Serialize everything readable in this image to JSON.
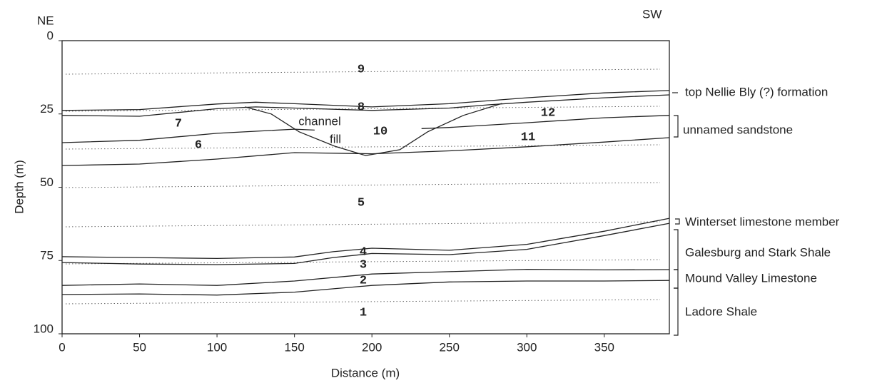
{
  "chart_data": {
    "type": "line",
    "corner_left": "NE",
    "corner_right": "SW",
    "xlabel": "Distance (m)",
    "ylabel": "Depth (m)",
    "xlim": [
      0,
      392
    ],
    "ylim": [
      0,
      100
    ],
    "xticks": [
      0,
      50,
      100,
      150,
      200,
      250,
      300,
      350
    ],
    "yticks": [
      0,
      25,
      50,
      75,
      100
    ],
    "y_inverted": true,
    "series": [
      {
        "color": "#222",
        "x": [
          0,
          50,
          100,
          125,
          150,
          200,
          250,
          300,
          350,
          392
        ],
        "values": [
          23.8,
          23.5,
          21.6,
          21.0,
          21.5,
          22.6,
          21.5,
          19.5,
          17.8,
          17.0
        ]
      },
      {
        "color": "#222",
        "x": [
          0,
          50,
          100,
          125,
          150,
          200,
          250,
          275,
          300,
          350,
          392
        ],
        "values": [
          25.5,
          25.8,
          23.2,
          22.6,
          23.0,
          23.8,
          23.0,
          21.9,
          21.0,
          19.5,
          18.5
        ]
      },
      {
        "color": "#222",
        "x": [
          0,
          50,
          100,
          150,
          163,
          200,
          232,
          250,
          300,
          350,
          392
        ],
        "values": [
          34.8,
          34.0,
          31.6,
          30.2,
          30.5,
          null,
          30.0,
          29.6,
          28.0,
          26.3,
          25.5
        ]
      },
      {
        "color": "#222",
        "x": [
          0,
          50,
          100,
          150,
          200,
          250,
          300,
          350,
          392
        ],
        "values": [
          42.6,
          42.1,
          40.4,
          38.2,
          38.6,
          37.6,
          36.2,
          34.6,
          33.1
        ]
      },
      {
        "color": "#222",
        "x": [
          118,
          135,
          153,
          176,
          196,
          218,
          236,
          259,
          284
        ],
        "values": [
          22.6,
          25.0,
          31.1,
          36.0,
          39.2,
          37.2,
          31.1,
          25.5,
          21.4
        ]
      },
      {
        "color": "#222",
        "x": [
          0,
          50,
          100,
          150,
          175,
          200,
          250,
          300,
          350,
          392
        ],
        "values": [
          73.7,
          74.0,
          74.3,
          73.8,
          72.0,
          70.8,
          71.5,
          69.5,
          65.0,
          60.6
        ]
      },
      {
        "color": "#222",
        "x": [
          0,
          50,
          100,
          150,
          175,
          200,
          250,
          300,
          350,
          392
        ],
        "values": [
          75.7,
          76.2,
          76.4,
          76.0,
          74.0,
          72.6,
          73.0,
          71.2,
          66.5,
          62.3
        ]
      },
      {
        "color": "#222",
        "x": [
          0,
          50,
          100,
          150,
          200,
          250,
          300,
          350,
          392
        ],
        "values": [
          83.5,
          83.0,
          83.5,
          82.0,
          79.6,
          78.8,
          78.0,
          78.2,
          78.1
        ]
      },
      {
        "color": "#222",
        "x": [
          0,
          50,
          100,
          150,
          200,
          250,
          300,
          350,
          392
        ],
        "values": [
          86.6,
          86.4,
          86.8,
          85.8,
          83.5,
          82.3,
          82.0,
          82.0,
          81.8
        ]
      }
    ],
    "layer_labels": [
      "9",
      "8",
      "7",
      "6",
      "5",
      "4",
      "3",
      "2",
      "1",
      "10",
      "11",
      "12"
    ],
    "channel_label": [
      "channel",
      "fill"
    ],
    "formations": [
      "top Nellie Bly (?) formation",
      "unnamed sandstone",
      "Winterset limestone member",
      "Galesburg and Stark Shale",
      "Mound Valley Limestone",
      "Ladore Shale"
    ]
  }
}
